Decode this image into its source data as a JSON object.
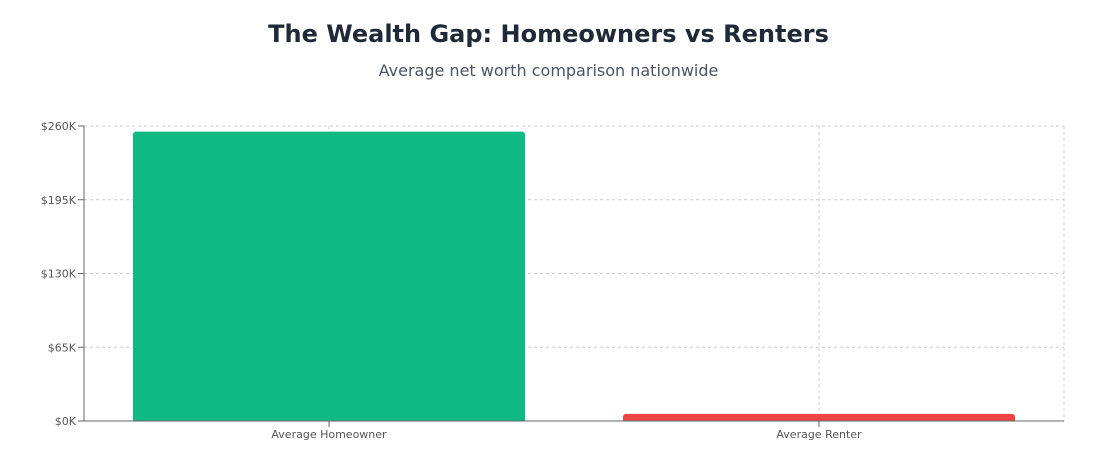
{
  "title": "The Wealth Gap: Homeowners vs Renters",
  "subtitle": "Average net worth comparison nationwide",
  "chart_data": {
    "type": "bar",
    "categories": [
      "Average Homeowner",
      "Average Renter"
    ],
    "values": [
      255000,
      6300
    ],
    "colors": [
      "#10b981",
      "#ef4444"
    ],
    "ylim": [
      0,
      260000
    ],
    "yticks": [
      0,
      65000,
      130000,
      195000,
      260000
    ],
    "ytick_labels": [
      "$0K",
      "$65K",
      "$130K",
      "$195K",
      "$260K"
    ],
    "grid": true,
    "legend": "none"
  }
}
